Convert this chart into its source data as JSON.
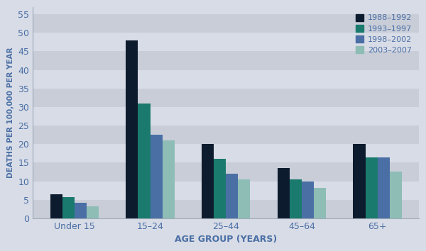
{
  "categories": [
    "Under 15",
    "15–24",
    "25–44",
    "45–64",
    "65+"
  ],
  "series": [
    {
      "label": "1988–1992",
      "color": "#0d1b2e",
      "values": [
        6.5,
        48.0,
        20.0,
        13.5,
        20.0
      ]
    },
    {
      "label": "1993–1997",
      "color": "#1a7a6e",
      "values": [
        5.7,
        31.0,
        16.0,
        10.5,
        16.5
      ]
    },
    {
      "label": "1998–2002",
      "color": "#4a6fa5",
      "values": [
        4.2,
        22.5,
        12.0,
        10.0,
        16.5
      ]
    },
    {
      "label": "2003–2007",
      "color": "#8dbdb5",
      "values": [
        3.2,
        21.0,
        10.5,
        8.2,
        12.5
      ]
    }
  ],
  "ylabel": "DEATHS PER 100,000 PER YEAR",
  "xlabel": "AGE GROUP (YEARS)",
  "ylim": [
    0,
    57
  ],
  "yticks": [
    0,
    5,
    10,
    15,
    20,
    25,
    30,
    35,
    40,
    45,
    50,
    55
  ],
  "bar_width": 0.16,
  "background_color": "#d8dce6",
  "stripe_light": "#d8dce6",
  "stripe_dark": "#c8cdd8",
  "plot_border_color": "#a0aab8",
  "legend_text_color": "#4a6fa5",
  "axis_label_color": "#4a6fa5",
  "tick_color": "#4a6fa5",
  "tick_fontsize": 9,
  "xlabel_fontsize": 9,
  "ylabel_fontsize": 7.5
}
